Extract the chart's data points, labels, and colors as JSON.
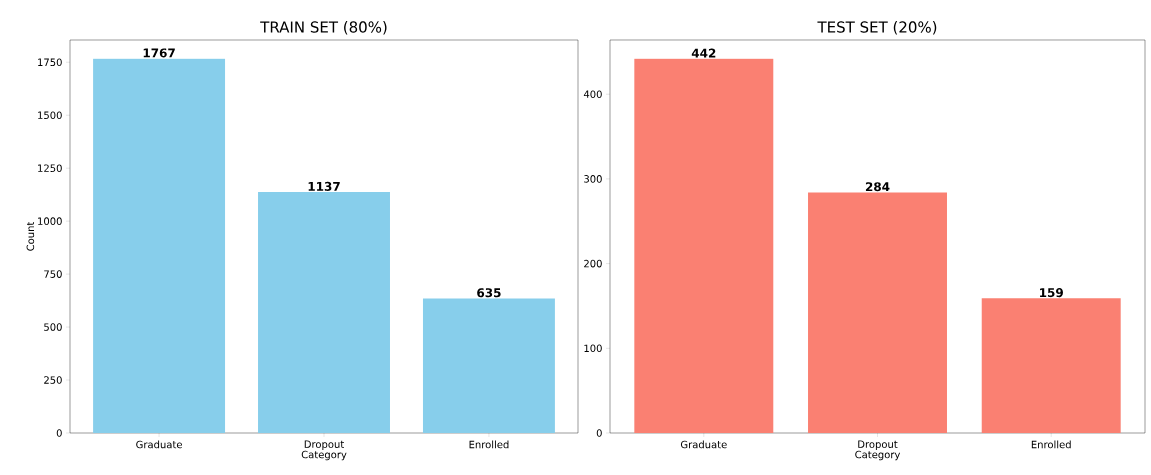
{
  "chart_data": [
    {
      "type": "bar",
      "title": "TRAIN SET (80%)",
      "xlabel": "Category",
      "ylabel": "Count",
      "categories": [
        "Graduate",
        "Dropout",
        "Enrolled"
      ],
      "values": [
        1767,
        1137,
        635
      ],
      "color": "#87ceeb",
      "ylim": [
        0,
        1855
      ],
      "yticks": [
        0,
        250,
        500,
        750,
        1000,
        1250,
        1500,
        1750
      ],
      "data_labels": true
    },
    {
      "type": "bar",
      "title": "TEST SET (20%)",
      "xlabel": "Category",
      "categories": [
        "Graduate",
        "Dropout",
        "Enrolled"
      ],
      "values": [
        442,
        284,
        159
      ],
      "color": "#fa8072",
      "ylim": [
        0,
        464
      ],
      "yticks": [
        0,
        100,
        200,
        300,
        400
      ],
      "data_labels": true
    }
  ]
}
